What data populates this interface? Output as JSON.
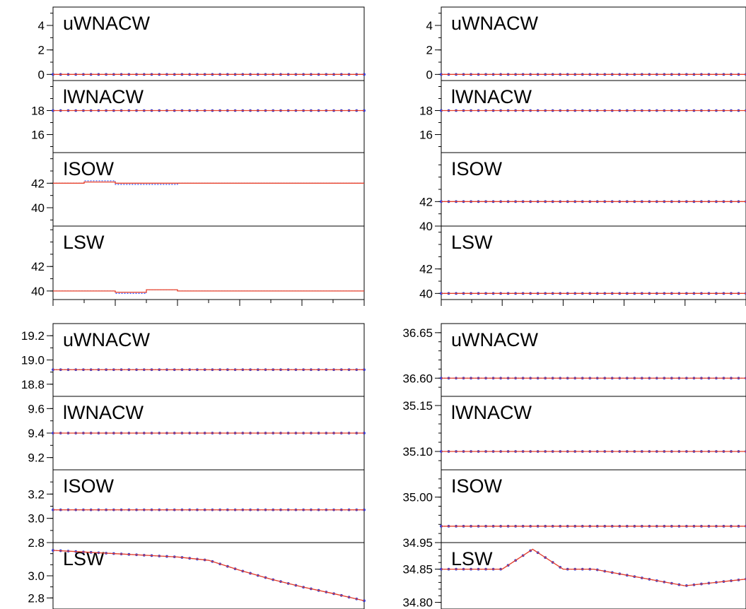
{
  "colors": {
    "solid_line": "#e8402a",
    "dotted_line": "#1f3cff",
    "marker": "#2a38d6",
    "axis": "#000000"
  },
  "chart_data": [
    {
      "type": "line",
      "panels": [
        {
          "title": "uWNACW",
          "ylim": [
            -0.5,
            5.5
          ],
          "yticks": [
            0,
            2,
            4
          ],
          "tick_labels": [
            "0",
            "2",
            "4"
          ],
          "series": [
            {
              "style": "dotted-with-markers",
              "y": [
                0
              ]
            },
            {
              "style": "solid",
              "y": [
                0
              ]
            }
          ]
        },
        {
          "title": "lWNACW",
          "ylim": [
            14.5,
            20.5
          ],
          "yticks": [
            16,
            18
          ],
          "tick_labels": [
            "16",
            "18"
          ],
          "series": [
            {
              "style": "dotted-with-markers",
              "y": [
                18
              ]
            },
            {
              "style": "solid",
              "y": [
                18
              ]
            }
          ]
        },
        {
          "title": "ISOW",
          "ylim": [
            38.5,
            44.5
          ],
          "yticks": [
            40,
            42
          ],
          "tick_labels": [
            "40",
            "42"
          ],
          "series": [
            {
              "style": "dotted",
              "segments": [
                [
                  0,
                  10,
                  42
                ],
                [
                  10,
                  20,
                  42.2
                ],
                [
                  20,
                  40,
                  41.9
                ],
                [
                  40,
                  100,
                  42
                ]
              ]
            },
            {
              "style": "solid",
              "segments": [
                [
                  0,
                  10,
                  42
                ],
                [
                  10,
                  20,
                  42.1
                ],
                [
                  20,
                  40,
                  42
                ],
                [
                  40,
                  100,
                  42
                ]
              ]
            }
          ]
        },
        {
          "title": "LSW",
          "ylim": [
            39.3,
            45.3
          ],
          "yticks": [
            40,
            42
          ],
          "tick_labels": [
            "40",
            "42"
          ],
          "series": [
            {
              "style": "dotted",
              "segments": [
                [
                  0,
                  20,
                  40
                ],
                [
                  20,
                  30,
                  39.8
                ],
                [
                  30,
                  40,
                  40.1
                ],
                [
                  40,
                  100,
                  40
                ]
              ]
            },
            {
              "style": "solid",
              "segments": [
                [
                  0,
                  20,
                  40
                ],
                [
                  20,
                  30,
                  39.9
                ],
                [
                  30,
                  40,
                  40.1
                ],
                [
                  40,
                  100,
                  40
                ]
              ]
            }
          ]
        }
      ]
    },
    {
      "type": "line",
      "panels": [
        {
          "title": "uWNACW",
          "ylim": [
            -0.5,
            5.5
          ],
          "yticks": [
            0,
            2,
            4
          ],
          "tick_labels": [
            "0",
            "2",
            "4"
          ],
          "series": [
            {
              "style": "dotted-with-markers",
              "y": [
                0
              ]
            },
            {
              "style": "solid",
              "y": [
                0
              ]
            }
          ]
        },
        {
          "title": "lWNACW",
          "ylim": [
            14.5,
            20.5
          ],
          "yticks": [
            16,
            18
          ],
          "tick_labels": [
            "16",
            "18"
          ],
          "series": [
            {
              "style": "dotted-with-markers",
              "y": [
                18
              ]
            },
            {
              "style": "solid",
              "y": [
                18
              ]
            }
          ]
        },
        {
          "title": "ISOW",
          "ylim": [
            40,
            46
          ],
          "yticks": [
            40,
            42
          ],
          "tick_labels": [
            "40",
            "42"
          ],
          "series": [
            {
              "style": "dotted-with-markers",
              "y": [
                42
              ]
            },
            {
              "style": "solid",
              "y": [
                42
              ]
            }
          ]
        },
        {
          "title": "LSW",
          "ylim": [
            39.5,
            45.5
          ],
          "yticks": [
            40,
            42
          ],
          "tick_labels": [
            "40",
            "42"
          ],
          "series": [
            {
              "style": "dotted-with-markers",
              "y": [
                40
              ]
            },
            {
              "style": "solid",
              "y": [
                40
              ]
            }
          ]
        }
      ]
    },
    {
      "type": "line",
      "panels": [
        {
          "title": "uWNACW",
          "ylim": [
            18.7,
            19.3
          ],
          "yticks": [
            18.8,
            19.0,
            19.2
          ],
          "tick_labels": [
            "18.8",
            "19.0",
            "19.2"
          ],
          "series": [
            {
              "style": "dotted-with-markers",
              "y": [
                18.92
              ]
            },
            {
              "style": "solid",
              "y": [
                18.92
              ]
            }
          ]
        },
        {
          "title": "lWNACW",
          "ylim": [
            9.1,
            9.7
          ],
          "yticks": [
            9.2,
            9.4,
            9.6
          ],
          "tick_labels": [
            "9.2",
            "9.4",
            "9.6"
          ],
          "series": [
            {
              "style": "dotted-with-markers",
              "y": [
                9.4
              ]
            },
            {
              "style": "solid",
              "y": [
                9.4
              ]
            }
          ]
        },
        {
          "title": "ISOW",
          "ylim": [
            2.8,
            3.4
          ],
          "yticks": [
            2.8,
            3.0,
            3.2
          ],
          "tick_labels": [
            "2.8",
            "3.0",
            "3.2"
          ],
          "series": [
            {
              "style": "dotted-with-markers",
              "y": [
                3.07
              ]
            },
            {
              "style": "solid",
              "y": [
                3.07
              ]
            }
          ]
        },
        {
          "title": "LSW",
          "ylim": [
            2.7,
            3.3
          ],
          "yticks": [
            2.8,
            3.0
          ],
          "tick_labels": [
            "2.8",
            "3.0"
          ],
          "series": [
            {
              "style": "dotted-with-markers",
              "x": [
                0,
                10,
                20,
                30,
                40,
                50,
                60,
                70,
                80,
                90,
                100
              ],
              "y": [
                3.23,
                3.215,
                3.2,
                3.185,
                3.17,
                3.14,
                3.05,
                2.97,
                2.9,
                2.84,
                2.775
              ]
            },
            {
              "style": "solid",
              "x": [
                0,
                10,
                20,
                30,
                40,
                50,
                60,
                70,
                80,
                90,
                100
              ],
              "y": [
                3.23,
                3.215,
                3.2,
                3.185,
                3.17,
                3.14,
                3.05,
                2.97,
                2.9,
                2.84,
                2.775
              ]
            }
          ]
        }
      ]
    },
    {
      "type": "line",
      "panels": [
        {
          "title": "uWNACW",
          "ylim": [
            36.58,
            36.66
          ],
          "yticks": [
            36.6,
            36.65
          ],
          "tick_labels": [
            "36.60",
            "36.65"
          ],
          "minor_step": 0.01,
          "series": [
            {
              "style": "dotted-with-markers",
              "y": [
                36.6
              ]
            },
            {
              "style": "solid",
              "y": [
                36.6
              ]
            }
          ]
        },
        {
          "title": "lWNACW",
          "ylim": [
            35.08,
            35.16
          ],
          "yticks": [
            35.1,
            35.15
          ],
          "tick_labels": [
            "35.10",
            "35.15"
          ],
          "minor_step": 0.01,
          "series": [
            {
              "style": "dotted-with-markers",
              "y": [
                35.1
              ]
            },
            {
              "style": "solid",
              "y": [
                35.1
              ]
            }
          ]
        },
        {
          "title": "ISOW",
          "ylim": [
            34.95,
            35.03
          ],
          "yticks": [
            34.95,
            35.0
          ],
          "tick_labels": [
            "34.95",
            "35.00"
          ],
          "minor_step": 0.01,
          "series": [
            {
              "style": "dotted-with-markers",
              "y": [
                34.968
              ]
            },
            {
              "style": "solid",
              "y": [
                34.968
              ]
            }
          ]
        },
        {
          "title": "LSW",
          "ylim": [
            34.79,
            34.89
          ],
          "yticks": [
            34.8,
            34.85
          ],
          "tick_labels": [
            "34.80",
            "34.85"
          ],
          "minor_step": 0.01,
          "series": [
            {
              "style": "dotted-with-markers",
              "x": [
                0,
                20,
                30,
                40,
                50,
                80,
                100
              ],
              "y": [
                34.85,
                34.85,
                34.88,
                34.85,
                34.85,
                34.825,
                34.835
              ]
            },
            {
              "style": "solid",
              "x": [
                0,
                20,
                30,
                40,
                50,
                80,
                100
              ],
              "y": [
                34.85,
                34.85,
                34.88,
                34.85,
                34.85,
                34.825,
                34.835
              ]
            }
          ]
        }
      ]
    }
  ]
}
